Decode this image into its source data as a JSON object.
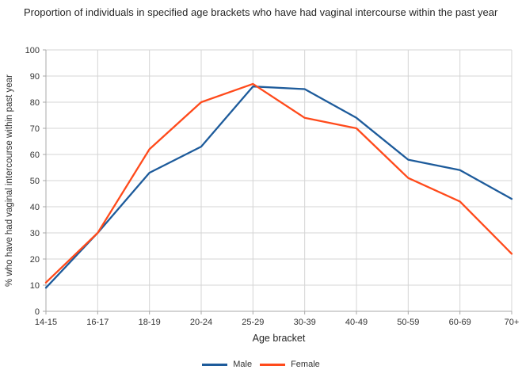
{
  "chart_data": {
    "type": "line",
    "title": "Proportion of individuals in specified age brackets who have had vaginal intercourse within the past year",
    "xlabel": "Age bracket",
    "ylabel": "% who have had vaginal intercourse within past year",
    "categories": [
      "14-15",
      "16-17",
      "18-19",
      "20-24",
      "25-29",
      "30-39",
      "40-49",
      "50-59",
      "60-69",
      "70+"
    ],
    "series": [
      {
        "name": "Male",
        "color": "#1d5b9b",
        "values": [
          9,
          30,
          53,
          63,
          86,
          85,
          74,
          58,
          54,
          43
        ]
      },
      {
        "name": "Female",
        "color": "#ff4a1b",
        "values": [
          11,
          30,
          62,
          80,
          87,
          74,
          70,
          51,
          42,
          22
        ]
      }
    ],
    "ylim": [
      0,
      100
    ],
    "ytick_step": 10,
    "grid": "on",
    "legend_position": "bottom",
    "colors": {
      "gridline": "#d4d4d4",
      "axis": "#a8a8a8",
      "tick_label": "#333333"
    }
  }
}
